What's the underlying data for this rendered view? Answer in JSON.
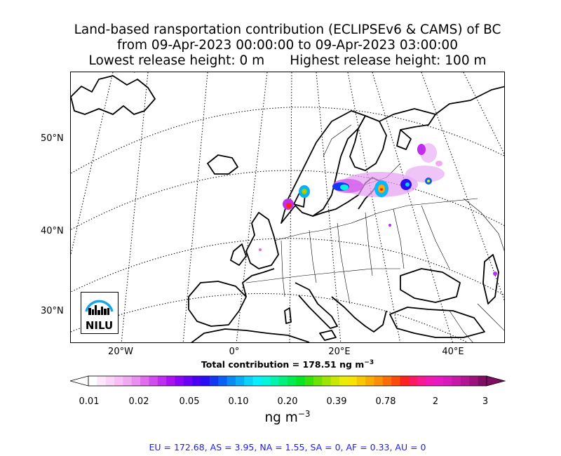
{
  "title": {
    "line1": "Land-based ransportation contribution (ECLIPSEv6 & CAMS) of BC",
    "line2": "from 09-Apr-2023 00:00:00 to 09-Apr-2023 03:00:00",
    "line3_left": "Lowest release height: 0 m",
    "line3_right": "Highest release height: 100 m"
  },
  "map": {
    "lat_labels": [
      "50°N",
      "40°N",
      "30°N"
    ],
    "lon_labels": [
      "20°W",
      "0°",
      "20°E",
      "40°E"
    ],
    "logo_text": "NILU",
    "gridline_style": "dotted",
    "projection": "polar-stereographic-like"
  },
  "total": {
    "label": "Total contribution = 178.51 ng m",
    "unit_exp": "−3"
  },
  "colorbar": {
    "tick_labels": [
      "0.01",
      "0.02",
      "0.05",
      "0.10",
      "0.20",
      "0.39",
      "0.78",
      "2",
      "3"
    ],
    "units_label": "ng m",
    "units_exp": "−3",
    "colors": [
      "#ffffff",
      "#fde8fb",
      "#fbd3f8",
      "#f7bff5",
      "#f1aaf1",
      "#ea8eef",
      "#e06cee",
      "#d14cee",
      "#bf2df1",
      "#a913f4",
      "#8c05f5",
      "#6b02f5",
      "#4a01f3",
      "#2a0ef2",
      "#1238f0",
      "#0962f3",
      "#0b8af5",
      "#0aaef7",
      "#0ad2f9",
      "#08eefa",
      "#05f5dc",
      "#04f3b0",
      "#02f080",
      "#01ec50",
      "#05e520",
      "#3be00a",
      "#6ee204",
      "#9ee403",
      "#c8e804",
      "#e9ec05",
      "#f7e204",
      "#f8c604",
      "#f9ab05",
      "#fa8e06",
      "#fa6e07",
      "#fb4a09",
      "#fb2320",
      "#fa1860",
      "#f81896",
      "#f018b4",
      "#e619c2",
      "#d81aba",
      "#c619a8",
      "#b21693",
      "#9c127c",
      "#800c63"
    ]
  },
  "footer": {
    "text": "EU = 172.68,  AS = 3.95,  NA = 1.55,  SA = 0,  AF = 0.33,  AU = 0"
  }
}
